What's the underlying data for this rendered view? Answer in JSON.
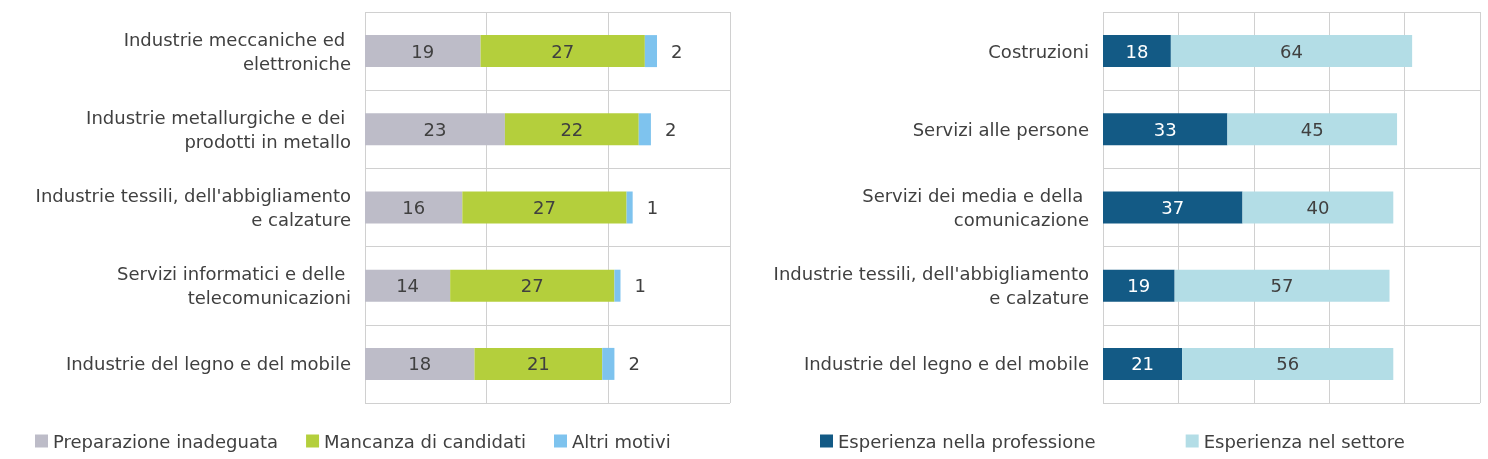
{
  "chart_data": [
    {
      "type": "bar",
      "orientation": "horizontal",
      "stacked": true,
      "categories": [
        "Industrie meccaniche ed elettroniche",
        "Industrie metallurgiche e dei prodotti in metallo",
        "Industrie tessili, dell'abbigliamento e calzature",
        "Servizi informatici e delle telecomunicazioni",
        "Industrie del legno e del mobile"
      ],
      "series": [
        {
          "name": "Preparazione inadeguata",
          "color": "#bdbcc8",
          "values": [
            19,
            23,
            16,
            14,
            18
          ]
        },
        {
          "name": "Mancanza di candidati",
          "color": "#b4cf3c",
          "values": [
            27,
            22,
            27,
            27,
            21
          ]
        },
        {
          "name": "Altri motivi",
          "color": "#7ec3ee",
          "values": [
            2,
            2,
            1,
            1,
            2
          ]
        }
      ],
      "xlim": [
        0,
        60
      ],
      "xticks": [
        {
          "value": 0,
          "label": null
        },
        {
          "value": 20,
          "label": null
        },
        {
          "value": 40,
          "label": null
        },
        {
          "value": 60,
          "label": null
        }
      ],
      "tick_labels": "y",
      "data_labels": true,
      "grid": true,
      "legend": "bottom"
    },
    {
      "type": "bar",
      "orientation": "horizontal",
      "stacked": true,
      "categories": [
        "Costruzioni",
        "Servizi alle persone",
        "Servizi dei media e della comunicazione",
        "Industrie tessili, dell'abbigliamento e calzature",
        "Industrie del legno e del mobile"
      ],
      "series": [
        {
          "name": "Esperienza nella professione",
          "color": "#135a85",
          "values": [
            18,
            33,
            37,
            19,
            21
          ]
        },
        {
          "name": "Esperienza nel settore",
          "color": "#b3dde6",
          "values": [
            64,
            45,
            40,
            57,
            56
          ]
        }
      ],
      "xlim": [
        0,
        100
      ],
      "xticks": [
        {
          "value": 0,
          "label": null
        },
        {
          "value": 20,
          "label": null
        },
        {
          "value": 40,
          "label": null
        },
        {
          "value": 60,
          "label": null
        },
        {
          "value": 80,
          "label": null
        },
        {
          "value": 100,
          "label": null
        }
      ],
      "tick_labels": "y",
      "data_labels": true,
      "grid": true,
      "legend": "bottom"
    }
  ]
}
